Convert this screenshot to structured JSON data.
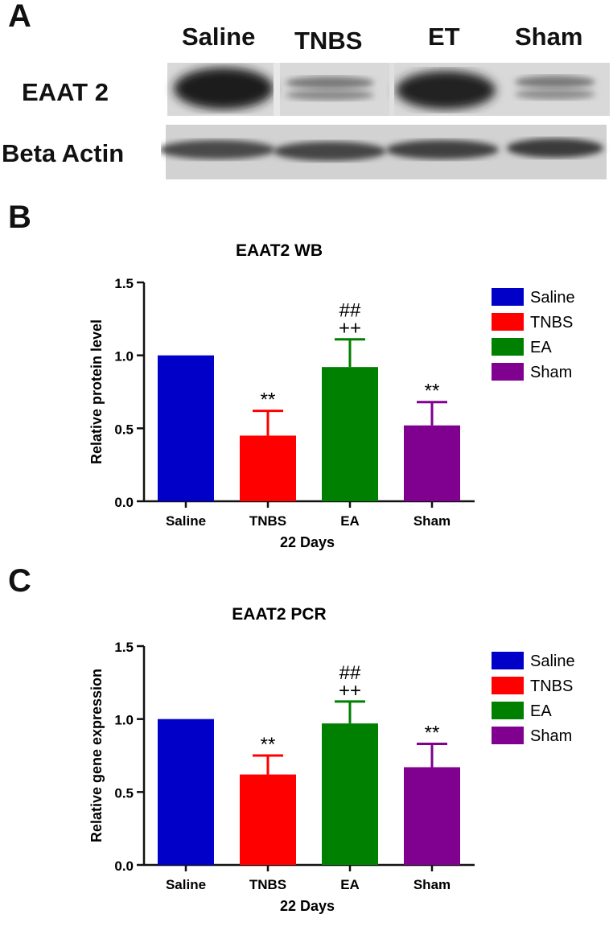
{
  "panel_a": {
    "letter": "A",
    "lane_labels": [
      "Saline",
      "TNBS",
      "ET",
      "Sham"
    ],
    "row_labels": [
      "EAAT 2",
      "Beta Actin"
    ]
  },
  "chart_data": [
    {
      "letter": "B",
      "type": "bar",
      "title": "EAAT2 WB",
      "xlabel": "22 Days",
      "ylabel": "Relative protein level",
      "ylim": [
        0,
        1.5
      ],
      "yticks": [
        "0.0",
        "0.5",
        "1.0",
        "1.5"
      ],
      "categories": [
        "Saline",
        "TNBS",
        "EA",
        "Sham"
      ],
      "values": [
        1.0,
        0.45,
        0.92,
        0.52
      ],
      "errors": [
        0,
        0.17,
        0.19,
        0.16
      ],
      "annotations": [
        "",
        "**",
        "++\n##",
        "**"
      ],
      "colors": [
        "#0000c8",
        "#ff0000",
        "#008000",
        "#800090"
      ],
      "legend": [
        "Saline",
        "TNBS",
        "EA",
        "Sham"
      ],
      "legend_position": "right",
      "grid": false
    },
    {
      "letter": "C",
      "type": "bar",
      "title": "EAAT2 PCR",
      "xlabel": "22 Days",
      "ylabel": "Relative gene expression",
      "ylim": [
        0,
        1.5
      ],
      "yticks": [
        "0.0",
        "0.5",
        "1.0",
        "1.5"
      ],
      "categories": [
        "Saline",
        "TNBS",
        "EA",
        "Sham"
      ],
      "values": [
        1.0,
        0.62,
        0.97,
        0.67
      ],
      "errors": [
        0,
        0.13,
        0.15,
        0.16
      ],
      "annotations": [
        "",
        "**",
        "++\n##",
        "**"
      ],
      "colors": [
        "#0000c8",
        "#ff0000",
        "#008000",
        "#800090"
      ],
      "legend": [
        "Saline",
        "TNBS",
        "EA",
        "Sham"
      ],
      "legend_position": "right",
      "grid": false
    }
  ]
}
